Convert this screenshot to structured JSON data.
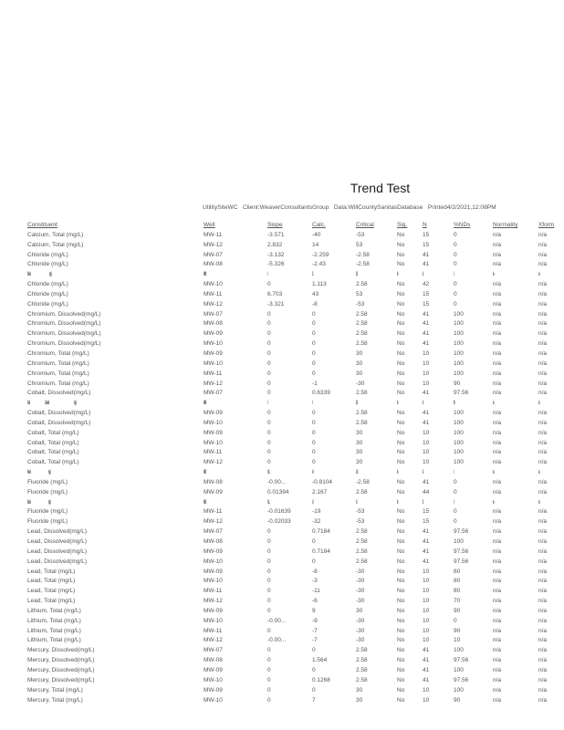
{
  "page": {
    "title": "Trend Test",
    "subtitle_segments": [
      "UtilitySiteWC",
      "Client:WeaverConsultantsGroup",
      "Data:WillCountySanitasDatabase",
      "Printed4/2/2021,12:08PM"
    ],
    "subtitle_separator": "   "
  },
  "colors": {
    "page_background": "#ffffff",
    "body_text": "#54565b",
    "title_text": "#1d1d1f",
    "compressed_ink": "#26262a"
  },
  "table": {
    "columns": [
      "Constituent",
      "Well",
      "Slope",
      "Calc.",
      "Critical",
      "Sig.",
      "N",
      "%NDs",
      "Normality",
      "Xform"
    ],
    "rows": [
      {
        "compressed": false,
        "cells": [
          "Calcium, Total (mg/L)",
          "MW-11",
          "-3.571",
          "-40",
          "-53",
          "No",
          "15",
          "0",
          "n/a",
          "n/a"
        ]
      },
      {
        "compressed": false,
        "cells": [
          "Calcium, Total (mg/L)",
          "MW-12",
          "2.832",
          "14",
          "53",
          "No",
          "15",
          "0",
          "n/a",
          "n/a"
        ]
      },
      {
        "compressed": false,
        "cells": [
          "Chloride (mg/L)",
          "MW-07",
          "-3.132",
          "-2.259",
          "-2.58",
          "No",
          "41",
          "0",
          "n/a",
          "n/a"
        ]
      },
      {
        "compressed": false,
        "cells": [
          "Chloride (mg/L)",
          "MW-08",
          "-5.326",
          "-2.43",
          "-2.58",
          "No",
          "41",
          "0",
          "n/a",
          "n/a"
        ]
      },
      {
        "compressed": true,
        "cells": [
          "Chloride (mg/L)",
          "MW-09",
          "0",
          "1.5",
          "2.58",
          "No",
          "41",
          "0",
          "n/a",
          "n/a"
        ]
      },
      {
        "compressed": false,
        "cells": [
          "Chloride (mg/L)",
          "MW-10",
          "0",
          "1.113",
          "2.58",
          "No",
          "42",
          "0",
          "n/a",
          "n/a"
        ]
      },
      {
        "compressed": false,
        "cells": [
          "Chloride (mg/L)",
          "MW-11",
          "6.703",
          "43",
          "53",
          "No",
          "15",
          "0",
          "n/a",
          "n/a"
        ]
      },
      {
        "compressed": false,
        "cells": [
          "Chloride (mg/L)",
          "MW-12",
          "-3.321",
          "-8",
          "-53",
          "No",
          "15",
          "0",
          "n/a",
          "n/a"
        ]
      },
      {
        "compressed": false,
        "cells": [
          "Chromium, Dissolved(mg/L)",
          "MW-07",
          "0",
          "0",
          "2.58",
          "No",
          "41",
          "100",
          "n/a",
          "n/a"
        ]
      },
      {
        "compressed": false,
        "cells": [
          "Chromium, Dissolved(mg/L)",
          "MW-08",
          "0",
          "0",
          "2.58",
          "No",
          "41",
          "100",
          "n/a",
          "n/a"
        ]
      },
      {
        "compressed": false,
        "cells": [
          "Chromium, Dissolved(mg/L)",
          "MW-09",
          "0",
          "0",
          "2.58",
          "No",
          "41",
          "100",
          "n/a",
          "n/a"
        ]
      },
      {
        "compressed": false,
        "cells": [
          "Chromium, Dissolved(mg/L)",
          "MW-10",
          "0",
          "0",
          "2.58",
          "No",
          "41",
          "100",
          "n/a",
          "n/a"
        ]
      },
      {
        "compressed": false,
        "cells": [
          "Chromium, Total (mg/L)",
          "MW-09",
          "0",
          "0",
          "30",
          "No",
          "10",
          "100",
          "n/a",
          "n/a"
        ]
      },
      {
        "compressed": false,
        "cells": [
          "Chromium, Total (mg/L)",
          "MW-10",
          "0",
          "0",
          "30",
          "No",
          "10",
          "100",
          "n/a",
          "n/a"
        ]
      },
      {
        "compressed": false,
        "cells": [
          "Chromium, Total (mg/L)",
          "MW-11",
          "0",
          "0",
          "30",
          "No",
          "10",
          "100",
          "n/a",
          "n/a"
        ]
      },
      {
        "compressed": false,
        "cells": [
          "Chromium, Total (mg/L)",
          "MW-12",
          "0",
          "-1",
          "-30",
          "No",
          "10",
          "90",
          "n/a",
          "n/a"
        ]
      },
      {
        "compressed": false,
        "cells": [
          "Cobalt, Dissolved(mg/L)",
          "MW-07",
          "0",
          "0.6339",
          "2.58",
          "No",
          "41",
          "97.56",
          "n/a",
          "n/a"
        ]
      },
      {
        "compressed": true,
        "cells": [
          "Cobalt, Dissolved(mg/L)",
          "MW-08",
          "0",
          "0",
          "2.58",
          "No",
          "41",
          "100",
          "n/a",
          "n/a"
        ]
      },
      {
        "compressed": false,
        "cells": [
          "Cobalt, Dissolved(mg/L)",
          "MW-09",
          "0",
          "0",
          "2.58",
          "No",
          "41",
          "100",
          "n/a",
          "n/a"
        ]
      },
      {
        "compressed": false,
        "cells": [
          "Cobalt, Dissolved(mg/L)",
          "MW-10",
          "0",
          "0",
          "2.58",
          "No",
          "41",
          "100",
          "n/a",
          "n/a"
        ]
      },
      {
        "compressed": false,
        "cells": [
          "Cobalt, Total (mg/L)",
          "MW-09",
          "0",
          "0",
          "30",
          "No",
          "10",
          "100",
          "n/a",
          "n/a"
        ]
      },
      {
        "compressed": false,
        "cells": [
          "Cobalt, Total (mg/L)",
          "MW-10",
          "0",
          "0",
          "30",
          "No",
          "10",
          "100",
          "n/a",
          "n/a"
        ]
      },
      {
        "compressed": false,
        "cells": [
          "Cobalt, Total (mg/L)",
          "MW-11",
          "0",
          "0",
          "30",
          "No",
          "10",
          "100",
          "n/a",
          "n/a"
        ]
      },
      {
        "compressed": false,
        "cells": [
          "Cobalt, Total (mg/L)",
          "MW-12",
          "0",
          "0",
          "30",
          "No",
          "10",
          "100",
          "n/a",
          "n/a"
        ]
      },
      {
        "compressed": true,
        "cells": [
          "Fluoride (mg/L)",
          "MW-07",
          "-0.00...",
          "-0.9",
          "-2.58",
          "No",
          "41",
          "0",
          "n/a",
          "n/a"
        ]
      },
      {
        "compressed": false,
        "cells": [
          "Fluoride (mg/L)",
          "MW-08",
          "-0.00...",
          "-0.8104",
          "-2.58",
          "No",
          "41",
          "0",
          "n/a",
          "n/a"
        ]
      },
      {
        "compressed": false,
        "cells": [
          "Fluoride (mg/L)",
          "MW-09",
          "0.01394",
          "2.167",
          "2.58",
          "No",
          "44",
          "0",
          "n/a",
          "n/a"
        ]
      },
      {
        "compressed": true,
        "cells": [
          "Fluoride (mg/L)",
          "MW-10",
          "-0.01...",
          "-18",
          "-53",
          "No",
          "15",
          "0",
          "n/a",
          "n/a"
        ]
      },
      {
        "compressed": false,
        "cells": [
          "Fluoride (mg/L)",
          "MW-11",
          "-0.01639",
          "-19",
          "-53",
          "No",
          "15",
          "0",
          "n/a",
          "n/a"
        ]
      },
      {
        "compressed": false,
        "cells": [
          "Fluoride (mg/L)",
          "MW-12",
          "-0.02033",
          "-32",
          "-53",
          "No",
          "15",
          "0",
          "n/a",
          "n/a"
        ]
      },
      {
        "compressed": false,
        "cells": [
          "Lead, Dissolved(mg/L)",
          "MW-07",
          "0",
          "0.7184",
          "2.58",
          "No",
          "41",
          "97.56",
          "n/a",
          "n/a"
        ]
      },
      {
        "compressed": false,
        "cells": [
          "Lead, Dissolved(mg/L)",
          "MW-08",
          "0",
          "0",
          "2.58",
          "No",
          "41",
          "100",
          "n/a",
          "n/a"
        ]
      },
      {
        "compressed": false,
        "cells": [
          "Lead, Dissolved(mg/L)",
          "MW-09",
          "0",
          "0.7184",
          "2.58",
          "No",
          "41",
          "97.56",
          "n/a",
          "n/a"
        ]
      },
      {
        "compressed": false,
        "cells": [
          "Lead, Dissolved(mg/L)",
          "MW-10",
          "0",
          "0",
          "2.58",
          "No",
          "41",
          "97.56",
          "n/a",
          "n/a"
        ]
      },
      {
        "compressed": false,
        "cells": [
          "Lead, Total (mg/L)",
          "MW-09",
          "0",
          "-8",
          "-30",
          "No",
          "10",
          "60",
          "n/a",
          "n/a"
        ]
      },
      {
        "compressed": false,
        "cells": [
          "Lead, Total (mg/L)",
          "MW-10",
          "0",
          "-3",
          "-30",
          "No",
          "10",
          "80",
          "n/a",
          "n/a"
        ]
      },
      {
        "compressed": false,
        "cells": [
          "Lead, Total (mg/L)",
          "MW-11",
          "0",
          "-11",
          "-30",
          "No",
          "10",
          "80",
          "n/a",
          "n/a"
        ]
      },
      {
        "compressed": false,
        "cells": [
          "Lead, Total (mg/L)",
          "MW-12",
          "0",
          "-6",
          "-30",
          "No",
          "10",
          "70",
          "n/a",
          "n/a"
        ]
      },
      {
        "compressed": false,
        "cells": [
          "Lithium, Total (mg/L)",
          "MW-09",
          "0",
          "9",
          "30",
          "No",
          "10",
          "90",
          "n/a",
          "n/a"
        ]
      },
      {
        "compressed": false,
        "cells": [
          "Lithium, Total (mg/L)",
          "MW-10",
          "-0.00...",
          "-9",
          "-30",
          "No",
          "10",
          "0",
          "n/a",
          "n/a"
        ]
      },
      {
        "compressed": false,
        "cells": [
          "Lithium, Total (mg/L)",
          "MW-11",
          "0",
          "-7",
          "-30",
          "No",
          "10",
          "90",
          "n/a",
          "n/a"
        ]
      },
      {
        "compressed": false,
        "cells": [
          "Lithium, Total (mg/L)",
          "MW-12",
          "-0.00...",
          "-7",
          "-30",
          "No",
          "10",
          "10",
          "n/a",
          "n/a"
        ]
      },
      {
        "compressed": false,
        "cells": [
          "Mercury, Dissolved(mg/L)",
          "MW-07",
          "0",
          "0",
          "2.58",
          "No",
          "41",
          "100",
          "n/a",
          "n/a"
        ]
      },
      {
        "compressed": false,
        "cells": [
          "Mercury, Dissolved(mg/L)",
          "MW-08",
          "0",
          "1.564",
          "2.58",
          "No",
          "41",
          "97.56",
          "n/a",
          "n/a"
        ]
      },
      {
        "compressed": false,
        "cells": [
          "Mercury, Dissolved(mg/L)",
          "MW-09",
          "0",
          "0",
          "2.58",
          "No",
          "41",
          "100",
          "n/a",
          "n/a"
        ]
      },
      {
        "compressed": false,
        "cells": [
          "Mercury, Dissolved(mg/L)",
          "MW-10",
          "0",
          "0.1268",
          "2.58",
          "No",
          "41",
          "97.56",
          "n/a",
          "n/a"
        ]
      },
      {
        "compressed": false,
        "cells": [
          "Mercury, Total (mg/L)",
          "MW-09",
          "0",
          "0",
          "30",
          "No",
          "10",
          "100",
          "n/a",
          "n/a"
        ]
      },
      {
        "compressed": false,
        "cells": [
          "Mercury, Total (mg/L)",
          "MW-10",
          "0",
          "7",
          "30",
          "No",
          "10",
          "90",
          "n/a",
          "n/a"
        ]
      }
    ]
  }
}
